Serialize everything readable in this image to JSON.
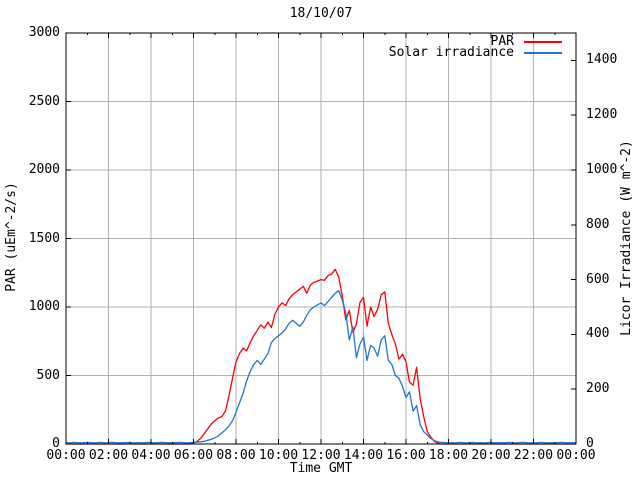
{
  "title": "18/10/07",
  "axes": {
    "x": {
      "label": "Time GMT",
      "tick_labels": [
        "00:00",
        "02:00",
        "04:00",
        "06:00",
        "08:00",
        "10:00",
        "12:00",
        "14:00",
        "16:00",
        "18:00",
        "20:00",
        "22:00",
        "00:00"
      ],
      "range_hours": [
        0,
        24
      ],
      "major_step_hours": 2,
      "minor_step_hours": 1
    },
    "y_left": {
      "label": "PAR (uEm^-2/s)",
      "tick_labels": [
        "0",
        "500",
        "1000",
        "1500",
        "2000",
        "2500",
        "3000"
      ],
      "range": [
        0,
        3000
      ],
      "tick_step": 500
    },
    "y_right": {
      "label": "Licor Irradiance (W m^-2)",
      "tick_labels": [
        "0",
        "200",
        "400",
        "600",
        "800",
        "1000",
        "1200",
        "1400"
      ],
      "range": [
        0,
        1500
      ],
      "tick_step": 200
    }
  },
  "legend": [
    {
      "label": "PAR",
      "color": "#ff0000"
    },
    {
      "label": "Solar irradiance",
      "color": "#1f76d2"
    }
  ],
  "colors": {
    "background": "#ffffff",
    "grid": "#b3b3b3",
    "border": "#000000",
    "par_line": "#ff0000",
    "solar_line": "#1f76d2"
  },
  "chart_data": {
    "type": "line",
    "title": "18/10/07",
    "xlabel": "Time GMT",
    "x_start_hour": 0,
    "x_interval_minutes": 10,
    "x_range_hours": [
      0,
      24
    ],
    "y_left_range": [
      0,
      3000
    ],
    "y_right_range": [
      0,
      1500
    ],
    "grid": true,
    "legend_position": "top-right",
    "series": [
      {
        "name": "PAR",
        "axis": "left",
        "unit": "uEm^-2/s",
        "color": "#ff0000",
        "values": [
          0,
          0,
          0,
          0,
          0,
          0,
          0,
          0,
          0,
          0,
          0,
          0,
          0,
          0,
          0,
          0,
          0,
          0,
          0,
          0,
          0,
          0,
          0,
          0,
          0,
          0,
          0,
          0,
          0,
          0,
          0,
          0,
          0,
          0,
          0,
          0,
          8,
          20,
          40,
          75,
          110,
          145,
          170,
          190,
          200,
          240,
          350,
          480,
          600,
          660,
          700,
          680,
          740,
          790,
          830,
          870,
          845,
          890,
          850,
          950,
          1000,
          1030,
          1010,
          1060,
          1090,
          1110,
          1130,
          1150,
          1100,
          1160,
          1180,
          1190,
          1200,
          1195,
          1230,
          1240,
          1275,
          1220,
          1080,
          905,
          975,
          815,
          875,
          1035,
          1070,
          860,
          1000,
          930,
          985,
          1090,
          1110,
          880,
          800,
          730,
          620,
          655,
          600,
          450,
          430,
          560,
          330,
          200,
          90,
          50,
          20,
          5,
          0,
          0,
          0,
          0,
          0,
          0,
          0,
          0,
          0,
          0,
          0,
          0,
          0,
          0,
          0,
          0,
          0,
          0,
          0,
          0,
          0,
          0,
          0,
          0,
          0,
          0,
          0,
          0,
          0,
          0,
          0,
          0,
          0,
          0,
          0,
          0,
          0,
          0,
          0
        ]
      },
      {
        "name": "Solar irradiance",
        "axis": "right",
        "unit": "W m^-2",
        "color": "#1f76d2",
        "values": [
          5,
          4,
          6,
          5,
          4,
          5,
          6,
          5,
          4,
          5,
          6,
          4,
          5,
          6,
          5,
          4,
          5,
          5,
          6,
          4,
          5,
          5,
          4,
          6,
          5,
          4,
          5,
          6,
          5,
          4,
          5,
          5,
          6,
          5,
          4,
          5,
          6,
          7,
          8,
          10,
          13,
          17,
          22,
          30,
          40,
          52,
          65,
          85,
          115,
          150,
          185,
          230,
          265,
          290,
          305,
          290,
          310,
          330,
          370,
          385,
          395,
          405,
          420,
          440,
          452,
          440,
          430,
          445,
          470,
          490,
          500,
          508,
          515,
          505,
          520,
          535,
          550,
          560,
          525,
          478,
          380,
          427,
          315,
          365,
          390,
          305,
          360,
          350,
          320,
          380,
          395,
          305,
          290,
          250,
          240,
          210,
          170,
          190,
          120,
          140,
          70,
          45,
          33,
          20,
          12,
          8,
          6,
          5,
          4,
          5,
          4,
          6,
          5,
          4,
          5,
          6,
          4,
          5,
          4,
          5,
          6,
          4,
          5,
          5,
          4,
          6,
          5,
          4,
          5,
          6,
          5,
          4,
          5,
          4,
          6,
          5,
          4,
          5,
          4,
          5,
          6,
          4,
          5,
          5,
          4
        ]
      }
    ]
  }
}
